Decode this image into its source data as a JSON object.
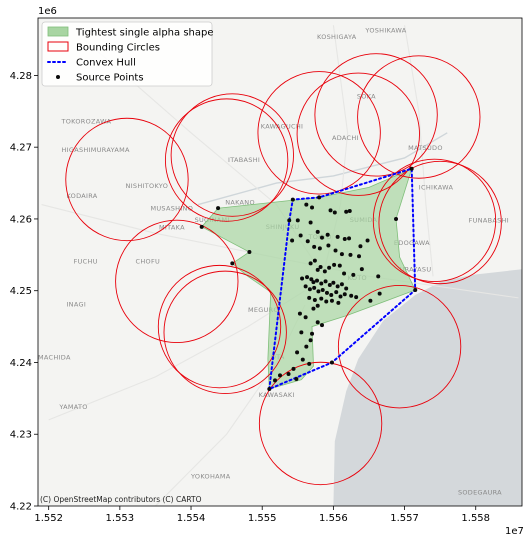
{
  "chart_data": {
    "type": "scatter",
    "x_offset_label": "1e7",
    "y_offset_label": "1e6",
    "xlim": [
      15518500.0,
      15586500.0
    ],
    "ylim": [
      4220000.0,
      4288000.0
    ],
    "x_ticks": [
      15520000,
      15530000,
      15540000,
      15550000,
      15560000,
      15570000,
      15580000
    ],
    "x_tick_labels": [
      "1.552",
      "1.553",
      "1.554",
      "1.555",
      "1.556",
      "1.557",
      "1.558"
    ],
    "y_ticks": [
      4220000,
      4230000,
      4240000,
      4250000,
      4260000,
      4270000,
      4280000
    ],
    "y_tick_labels": [
      "4.22",
      "4.23",
      "4.24",
      "4.25",
      "4.26",
      "4.27",
      "4.28"
    ],
    "legend": {
      "placement": "top-left",
      "entries": [
        {
          "label": "Tightest single alpha shape",
          "kind": "patch"
        },
        {
          "label": "Bounding Circles",
          "kind": "circle-patch"
        },
        {
          "label": "Convex Hull",
          "kind": "dotted-line"
        },
        {
          "label": "Source Points",
          "kind": "point"
        }
      ]
    },
    "colors": {
      "alpha_fill": "#a8d5a2",
      "alpha_edge": "#7fbf7a",
      "circle": "#e8000b",
      "hull": "#0000ff",
      "points": "#0a0a0a",
      "water": "#d4d8db",
      "land": "#f4f4f2"
    },
    "convex_hull": [
      [
        15551000,
        4236300
      ],
      [
        15553800,
        4259800
      ],
      [
        15554300,
        4262700
      ],
      [
        15558000,
        4263000
      ],
      [
        15571000,
        4267000
      ],
      [
        15571500,
        4250100
      ],
      [
        15559800,
        4240000
      ]
    ],
    "alpha_shape": [
      [
        15551000,
        4236300
      ],
      [
        15550800,
        4240500
      ],
      [
        15551200,
        4249800
      ],
      [
        15548000,
        4252000
      ],
      [
        15545800,
        4253800
      ],
      [
        15548200,
        4255400
      ],
      [
        15541500,
        4258900
      ],
      [
        15543800,
        4261500
      ],
      [
        15558000,
        4263000
      ],
      [
        15565000,
        4264400
      ],
      [
        15571000,
        4267000
      ],
      [
        15568800,
        4260000
      ],
      [
        15569300,
        4254700
      ],
      [
        15571500,
        4250100
      ],
      [
        15561800,
        4246500
      ],
      [
        15557000,
        4245000
      ],
      [
        15557200,
        4239500
      ],
      [
        15555500,
        4237600
      ],
      [
        15551000,
        4236300
      ]
    ],
    "bounding_circles": [
      {
        "cx": 15531000,
        "cy": 4265500,
        "r": 8600
      },
      {
        "cx": 15545800,
        "cy": 4268900,
        "r": 8600
      },
      {
        "cx": 15545000,
        "cy": 4268200,
        "r": 8600
      },
      {
        "cx": 15558000,
        "cy": 4272000,
        "r": 8600
      },
      {
        "cx": 15563500,
        "cy": 4271800,
        "r": 8600
      },
      {
        "cx": 15566000,
        "cy": 4274500,
        "r": 8600
      },
      {
        "cx": 15572000,
        "cy": 4274200,
        "r": 8600
      },
      {
        "cx": 15575000,
        "cy": 4259500,
        "r": 8600
      },
      {
        "cx": 15574200,
        "cy": 4259800,
        "r": 8600
      },
      {
        "cx": 15538000,
        "cy": 4251300,
        "r": 8600
      },
      {
        "cx": 15544000,
        "cy": 4245000,
        "r": 8600
      },
      {
        "cx": 15544800,
        "cy": 4244200,
        "r": 8600
      },
      {
        "cx": 15569300,
        "cy": 4242200,
        "r": 8600
      },
      {
        "cx": 15558200,
        "cy": 4231500,
        "r": 8600
      }
    ],
    "source_points": [
      [
        15551000,
        4236300
      ],
      [
        15553800,
        4259800
      ],
      [
        15554300,
        4262700
      ],
      [
        15558000,
        4263000
      ],
      [
        15571000,
        4267000
      ],
      [
        15571500,
        4250100
      ],
      [
        15559800,
        4240000
      ],
      [
        15568800,
        4260000
      ],
      [
        15545800,
        4253800
      ],
      [
        15548200,
        4255400
      ],
      [
        15541500,
        4258900
      ],
      [
        15543800,
        4261500
      ],
      [
        15556200,
        4262000
      ],
      [
        15557000,
        4261600
      ],
      [
        15559600,
        4261200
      ],
      [
        15560200,
        4260900
      ],
      [
        15561800,
        4261000
      ],
      [
        15562300,
        4261100
      ],
      [
        15555000,
        4259800
      ],
      [
        15556800,
        4259500
      ],
      [
        15557800,
        4258200
      ],
      [
        15558400,
        4257400
      ],
      [
        15559200,
        4257800
      ],
      [
        15560600,
        4257500
      ],
      [
        15561600,
        4257200
      ],
      [
        15562200,
        4257300
      ],
      [
        15556400,
        4256900
      ],
      [
        15557300,
        4256100
      ],
      [
        15558100,
        4255900
      ],
      [
        15559300,
        4256300
      ],
      [
        15560300,
        4255600
      ],
      [
        15561200,
        4255100
      ],
      [
        15562400,
        4255000
      ],
      [
        15563600,
        4254800
      ],
      [
        15564000,
        4253000
      ],
      [
        15556800,
        4253800
      ],
      [
        15557400,
        4254200
      ],
      [
        15557800,
        4252900
      ],
      [
        15558200,
        4253300
      ],
      [
        15558800,
        4252700
      ],
      [
        15559400,
        4253200
      ],
      [
        15560100,
        4253600
      ],
      [
        15560900,
        4253500
      ],
      [
        15561500,
        4252400
      ],
      [
        15562800,
        4252200
      ],
      [
        15566300,
        4252000
      ],
      [
        15555600,
        4251700
      ],
      [
        15556300,
        4251900
      ],
      [
        15556900,
        4251600
      ],
      [
        15557200,
        4251200
      ],
      [
        15557700,
        4251400
      ],
      [
        15558300,
        4251000
      ],
      [
        15558900,
        4251300
      ],
      [
        15559500,
        4250800
      ],
      [
        15560000,
        4251100
      ],
      [
        15560600,
        4250600
      ],
      [
        15561200,
        4250900
      ],
      [
        15561800,
        4250300
      ],
      [
        15556100,
        4250600
      ],
      [
        15556700,
        4250200
      ],
      [
        15557300,
        4250400
      ],
      [
        15557900,
        4249900
      ],
      [
        15558500,
        4250100
      ],
      [
        15559100,
        4249700
      ],
      [
        15559700,
        4249400
      ],
      [
        15560400,
        4249800
      ],
      [
        15561000,
        4249200
      ],
      [
        15561600,
        4249500
      ],
      [
        15562500,
        4249300
      ],
      [
        15563200,
        4249100
      ],
      [
        15556600,
        4249000
      ],
      [
        15557400,
        4248700
      ],
      [
        15558300,
        4248900
      ],
      [
        15559000,
        4248500
      ],
      [
        15559800,
        4248600
      ],
      [
        15560700,
        4248300
      ],
      [
        15565200,
        4248600
      ],
      [
        15566500,
        4249600
      ],
      [
        15557200,
        4247500
      ],
      [
        15557800,
        4247900
      ],
      [
        15555300,
        4246800
      ],
      [
        15556100,
        4246300
      ],
      [
        15557800,
        4245600
      ],
      [
        15558400,
        4245200
      ],
      [
        15555500,
        4244200
      ],
      [
        15557000,
        4244000
      ],
      [
        15556800,
        4243100
      ],
      [
        15556200,
        4242200
      ],
      [
        15554900,
        4241400
      ],
      [
        15555700,
        4240400
      ],
      [
        15556600,
        4239800
      ],
      [
        15554400,
        4239100
      ],
      [
        15553700,
        4238400
      ],
      [
        15554800,
        4237700
      ],
      [
        15551800,
        4237500
      ],
      [
        15552500,
        4238200
      ],
      [
        15564800,
        4257000
      ],
      [
        15563800,
        4256200
      ],
      [
        15555400,
        4257700
      ],
      [
        15554200,
        4257000
      ]
    ]
  },
  "map_labels": [
    {
      "text": "TOKOROZAWA",
      "x": 15521800,
      "y": 4273300
    },
    {
      "text": "HIGASHIMURAYAMA",
      "x": 15521800,
      "y": 4269300
    },
    {
      "text": "KODAIRA",
      "x": 15522500,
      "y": 4262900
    },
    {
      "text": "NISHITOKYO",
      "x": 15530800,
      "y": 4264300
    },
    {
      "text": "MUSASHINO",
      "x": 15534300,
      "y": 4261200
    },
    {
      "text": "MITAKA",
      "x": 15535500,
      "y": 4258500
    },
    {
      "text": "FUCHU",
      "x": 15523500,
      "y": 4253800
    },
    {
      "text": "CHOFU",
      "x": 15532200,
      "y": 4253800
    },
    {
      "text": "INAGI",
      "x": 15522500,
      "y": 4247800
    },
    {
      "text": "MACHIDA",
      "x": 15518500,
      "y": 4240400
    },
    {
      "text": "YAMATO",
      "x": 15521500,
      "y": 4233500
    },
    {
      "text": "YOKOHAMA",
      "x": 15540000,
      "y": 4223800
    },
    {
      "text": "KAWASAKI",
      "x": 15549500,
      "y": 4235200
    },
    {
      "text": "OTA",
      "x": 15551200,
      "y": 4240500
    },
    {
      "text": "MEGURO",
      "x": 15548000,
      "y": 4247000
    },
    {
      "text": "SUGINAMI",
      "x": 15540500,
      "y": 4259600
    },
    {
      "text": "NAKANO",
      "x": 15544800,
      "y": 4262000
    },
    {
      "text": "SHINJUKU",
      "x": 15550500,
      "y": 4258600
    },
    {
      "text": "TOKYO",
      "x": 15556500,
      "y": 4257200
    },
    {
      "text": "SUMIDA",
      "x": 15562300,
      "y": 4259600
    },
    {
      "text": "KOTO",
      "x": 15562000,
      "y": 4251500
    },
    {
      "text": "EDOGAWA",
      "x": 15568500,
      "y": 4256400
    },
    {
      "text": "URAYASU",
      "x": 15569300,
      "y": 4252700
    },
    {
      "text": "ICHIKAWA",
      "x": 15572000,
      "y": 4264100
    },
    {
      "text": "FUNABASHI",
      "x": 15579000,
      "y": 4259500
    },
    {
      "text": "MATSUDO",
      "x": 15570500,
      "y": 4269600
    },
    {
      "text": "ADACHI",
      "x": 15559800,
      "y": 4271000
    },
    {
      "text": "SOKA",
      "x": 15563300,
      "y": 4276800
    },
    {
      "text": "KAWAGUCHI",
      "x": 15549800,
      "y": 4272600
    },
    {
      "text": "ITABASHI",
      "x": 15545200,
      "y": 4267900
    },
    {
      "text": "KOSHIGAYA",
      "x": 15557700,
      "y": 4285100
    },
    {
      "text": "YOSHIKAWA",
      "x": 15564500,
      "y": 4286000
    },
    {
      "text": "SODEGAURA",
      "x": 15577500,
      "y": 4221600
    }
  ],
  "credit": "(C) OpenStreetMap contributors (C) CARTO"
}
